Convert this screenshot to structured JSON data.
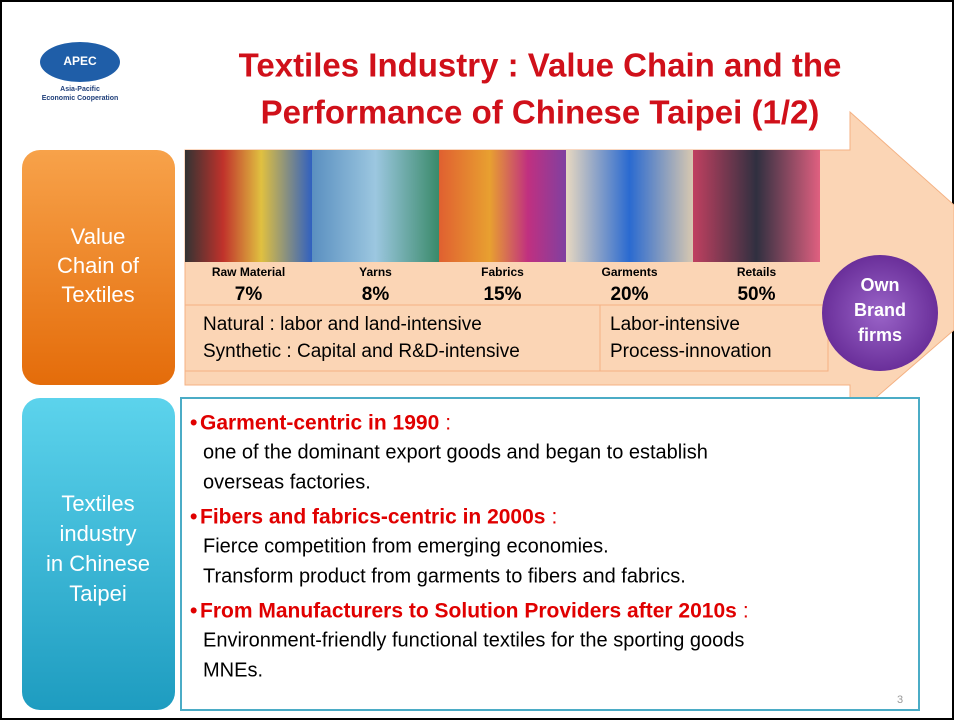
{
  "logo": {
    "name": "APEC",
    "subtitle_1": "Asia-Pacific",
    "subtitle_2": "Economic Cooperation"
  },
  "header": {
    "title_line_1": "Textiles Industry : Value Chain and the",
    "title_line_2": "Performance of Chinese Taipei (1/2)"
  },
  "value_chain": {
    "label": "Value Chain of Textiles",
    "stages": [
      {
        "name": "Raw Material",
        "share": "7%"
      },
      {
        "name": "Yarns",
        "share": "8%"
      },
      {
        "name": "Fabrics",
        "share": "15%"
      },
      {
        "name": "Garments",
        "share": "20%"
      },
      {
        "name": "Retails",
        "share": "50%"
      }
    ],
    "upstream": [
      "Natural : labor and land-intensive",
      "Synthetic : Capital and R&D-intensive"
    ],
    "downstream": [
      "Labor-intensive",
      "Process-innovation"
    ],
    "own_brand": "Own Brand firms"
  },
  "industry": {
    "label": "Textiles industry in Chinese Taipei",
    "bullets": [
      {
        "heading": "Garment-centric in 1990",
        "lines": [
          "one of the dominant export goods and began to establish",
          "overseas factories."
        ]
      },
      {
        "heading": "Fibers and fabrics-centric in 2000s",
        "lines": [
          "Fierce competition from emerging economies.",
          "Transform product from garments to fibers and fabrics."
        ]
      },
      {
        "heading": "From Manufacturers to Solution Providers after 2010s",
        "lines": [
          "Environment-friendly functional textiles for the sporting goods",
          "MNEs."
        ]
      }
    ]
  },
  "page_number": "3"
}
